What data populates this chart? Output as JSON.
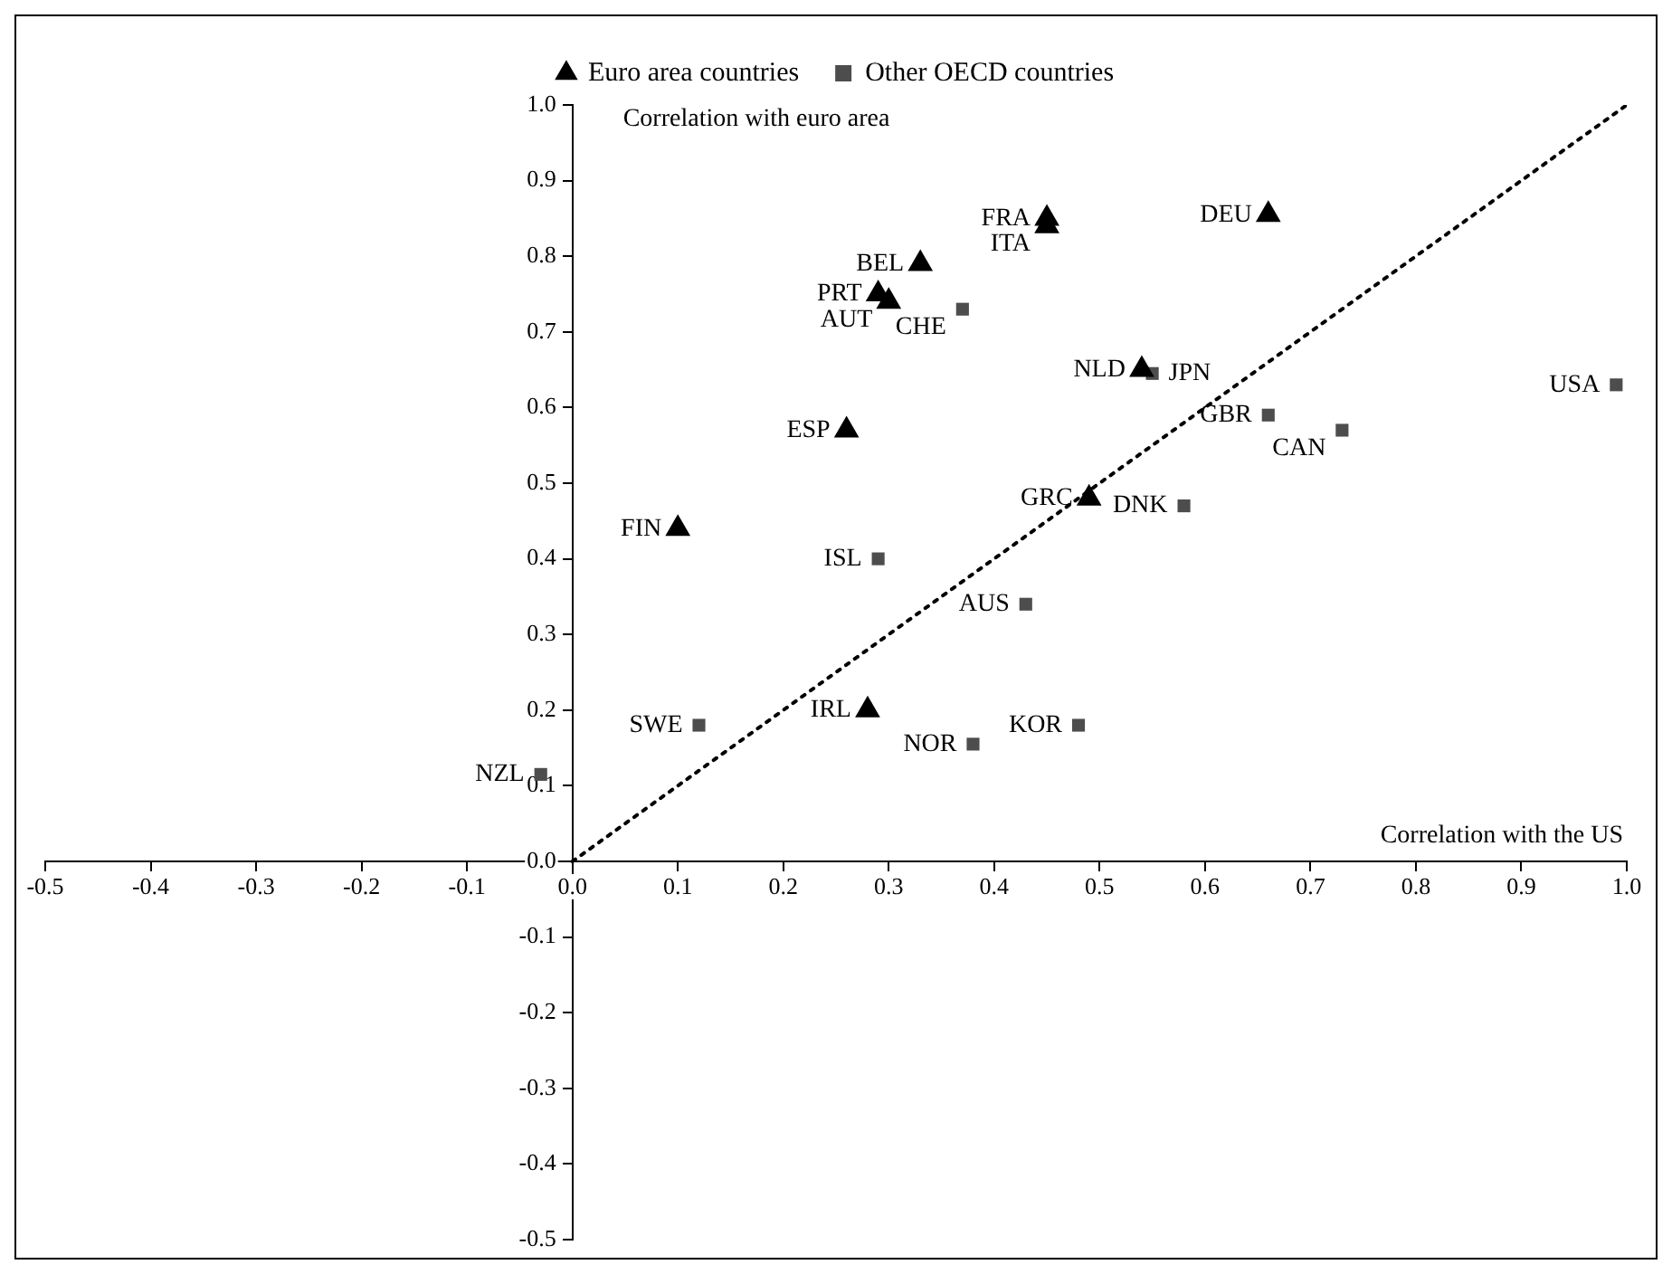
{
  "chart_data": {
    "type": "scatter",
    "xlabel": "Correlation with the US",
    "ylabel": "Correlation with euro area",
    "xlim": [
      -0.5,
      1.0
    ],
    "ylim": [
      -0.5,
      1.0
    ],
    "xticks": [
      -0.5,
      -0.4,
      -0.3,
      -0.2,
      -0.1,
      {
        "value": 0,
        "label": "0.0"
      },
      0.1,
      0.2,
      0.3,
      0.4,
      0.5,
      0.6,
      0.7,
      0.8,
      0.9,
      {
        "value": 1,
        "label": "1.0"
      }
    ],
    "yticks": [
      -0.5,
      -0.4,
      -0.3,
      -0.2,
      -0.1,
      {
        "value": 0,
        "label": "0.0"
      },
      0.1,
      0.2,
      0.3,
      0.4,
      0.5,
      0.6,
      0.7,
      0.8,
      0.9,
      {
        "value": 1,
        "label": "1.0"
      }
    ],
    "grid": false,
    "legend": "top",
    "series": [
      {
        "name": "Euro area countries",
        "type": "scatter",
        "marker": "triangle",
        "color": "#000000",
        "x": [
          0.45,
          0.45,
          0.66,
          0.33,
          0.29,
          0.3,
          0.54,
          0.26,
          0.49,
          0.1,
          0.28
        ],
        "values": [
          0.85,
          0.84,
          0.855,
          0.79,
          0.75,
          0.74,
          0.65,
          0.57,
          0.48,
          0.44,
          0.2
        ]
      },
      {
        "name": "Other OECD countries",
        "type": "scatter",
        "marker": "square",
        "color": "#4d4d4d",
        "x": [
          0.37,
          0.55,
          0.99,
          0.66,
          0.73,
          0.58,
          0.29,
          0.43,
          0.12,
          0.38,
          0.48,
          -0.03
        ],
        "values": [
          0.73,
          0.645,
          0.63,
          0.59,
          0.57,
          0.47,
          0.4,
          0.34,
          0.18,
          0.155,
          0.18,
          0.115
        ]
      },
      {
        "type": "line",
        "marker": "none",
        "line_style": "dotted",
        "color": "#000000",
        "x": [
          0,
          1
        ],
        "values": [
          0,
          1
        ]
      }
    ],
    "annotations": [
      {
        "text": "FRA",
        "x": 0.45,
        "y": 0.85
      },
      {
        "text": "ITA",
        "x": 0.45,
        "y": 0.84
      },
      {
        "text": "DEU",
        "x": 0.66,
        "y": 0.855
      },
      {
        "text": "BEL",
        "x": 0.33,
        "y": 0.79
      },
      {
        "text": "PRT",
        "x": 0.29,
        "y": 0.75
      },
      {
        "text": "AUT",
        "x": 0.3,
        "y": 0.74
      },
      {
        "text": "NLD",
        "x": 0.54,
        "y": 0.65
      },
      {
        "text": "ESP",
        "x": 0.26,
        "y": 0.57
      },
      {
        "text": "GRC",
        "x": 0.49,
        "y": 0.48
      },
      {
        "text": "FIN",
        "x": 0.1,
        "y": 0.44
      },
      {
        "text": "IRL",
        "x": 0.28,
        "y": 0.2
      },
      {
        "text": "CHE",
        "x": 0.37,
        "y": 0.73
      },
      {
        "text": "JPN",
        "x": 0.55,
        "y": 0.645
      },
      {
        "text": "USA",
        "x": 0.99,
        "y": 0.63
      },
      {
        "text": "GBR",
        "x": 0.66,
        "y": 0.59
      },
      {
        "text": "CAN",
        "x": 0.73,
        "y": 0.57
      },
      {
        "text": "DNK",
        "x": 0.58,
        "y": 0.47
      },
      {
        "text": "ISL",
        "x": 0.29,
        "y": 0.4
      },
      {
        "text": "AUS",
        "x": 0.43,
        "y": 0.34
      },
      {
        "text": "SWE",
        "x": 0.12,
        "y": 0.18
      },
      {
        "text": "NOR",
        "x": 0.38,
        "y": 0.155
      },
      {
        "text": "KOR",
        "x": 0.48,
        "y": 0.18
      },
      {
        "text": "NZL",
        "x": -0.03,
        "y": 0.115
      }
    ]
  }
}
